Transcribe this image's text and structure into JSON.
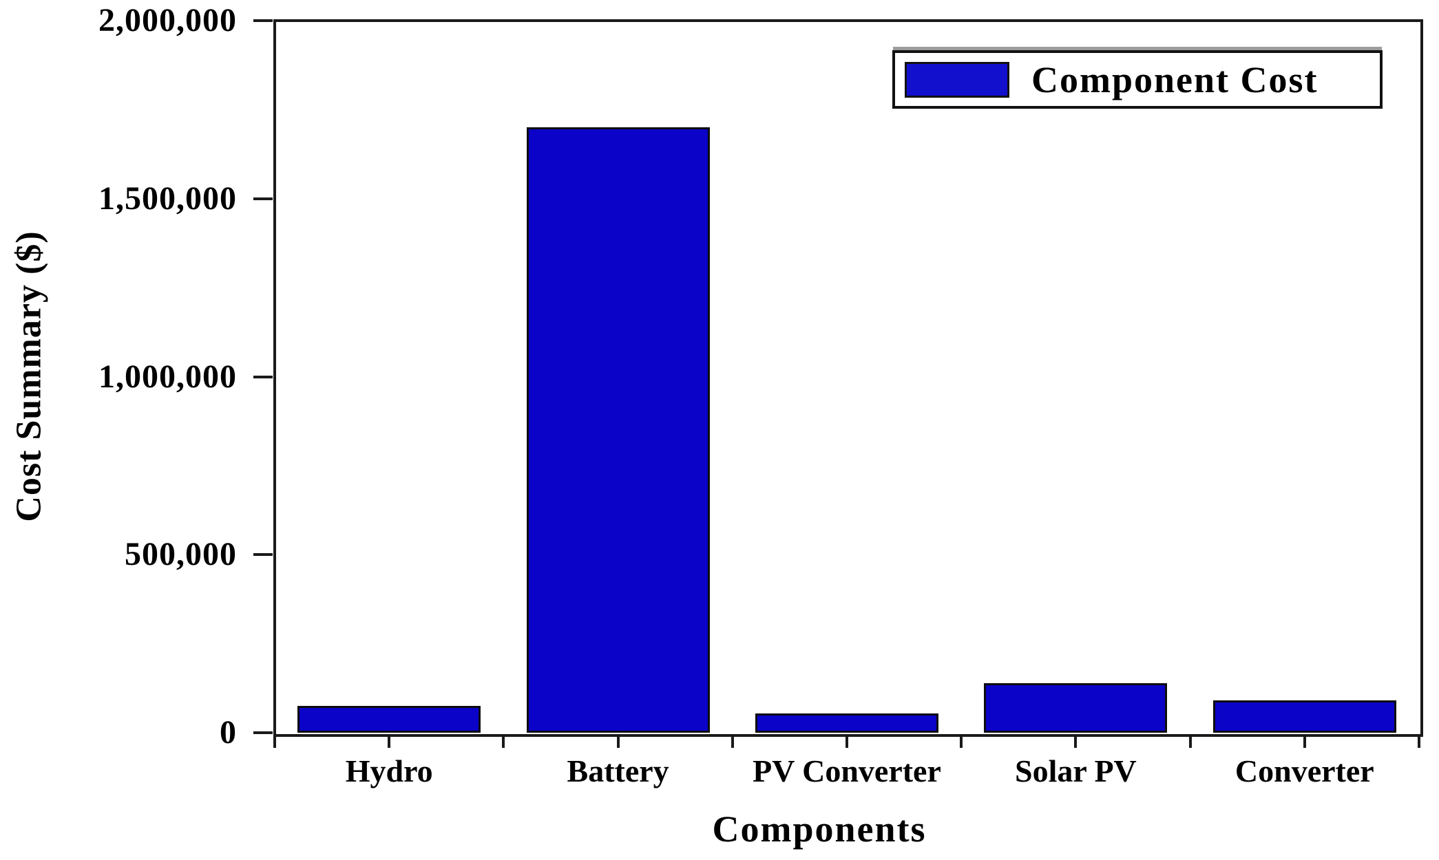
{
  "figure": {
    "background": "#ffffff",
    "axis_color": "#1a1a1a",
    "text_color": "#000000"
  },
  "legend": {
    "label": "Component Cost",
    "swatch_color": "#1310cd",
    "position": "top-right"
  },
  "chart_data": {
    "type": "bar",
    "title": "",
    "xlabel": "Components",
    "ylabel": "Cost Summary ($)",
    "categories": [
      "Hydro",
      "Battery",
      "PV Converter",
      "Solar PV",
      "Converter"
    ],
    "values": [
      75000,
      1700000,
      55000,
      140000,
      90000
    ],
    "series": [
      {
        "name": "Component Cost",
        "values": [
          75000,
          1700000,
          55000,
          140000,
          90000
        ]
      }
    ],
    "bar_color": "#0c03c8",
    "bar_border_color": "#0d0d0d",
    "ylim": [
      0,
      2000000
    ],
    "yticks": [
      0,
      500000,
      1000000,
      1500000,
      2000000
    ],
    "ytick_labels": [
      "0",
      "500,000",
      "1,000,000",
      "1,500,000",
      "2,000,000"
    ],
    "grid": false,
    "legend_position": "top-right",
    "bar_width_fraction": 0.8
  }
}
